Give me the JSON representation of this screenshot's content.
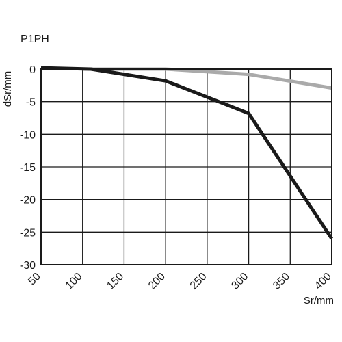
{
  "chart_data": {
    "type": "line",
    "title": "P1PH",
    "xlabel": "Sr/mm",
    "ylabel": "dSr/mm",
    "xlim": [
      50,
      400
    ],
    "ylim": [
      -30,
      0
    ],
    "x_ticks": [
      50,
      100,
      150,
      200,
      250,
      300,
      350,
      400
    ],
    "y_ticks": [
      0,
      -5,
      -10,
      -15,
      -20,
      -25,
      -30
    ],
    "x_tick_labels": [
      "50",
      "100",
      "150",
      "200",
      "250",
      "300",
      "350",
      "400"
    ],
    "y_tick_labels": [
      "0",
      "-5",
      "-10",
      "-15",
      "-20",
      "-25",
      "-30"
    ],
    "grid": true,
    "legend": "none",
    "series": [
      {
        "color": "#aaaaaa",
        "x": [
          100,
          200,
          300,
          400
        ],
        "y": [
          0,
          0,
          -0.8,
          -2.9
        ]
      },
      {
        "color": "#1a1a1a",
        "x": [
          50,
          110,
          200,
          300,
          400
        ],
        "y": [
          0.2,
          0,
          -1.8,
          -6.8,
          -26
        ]
      }
    ]
  }
}
